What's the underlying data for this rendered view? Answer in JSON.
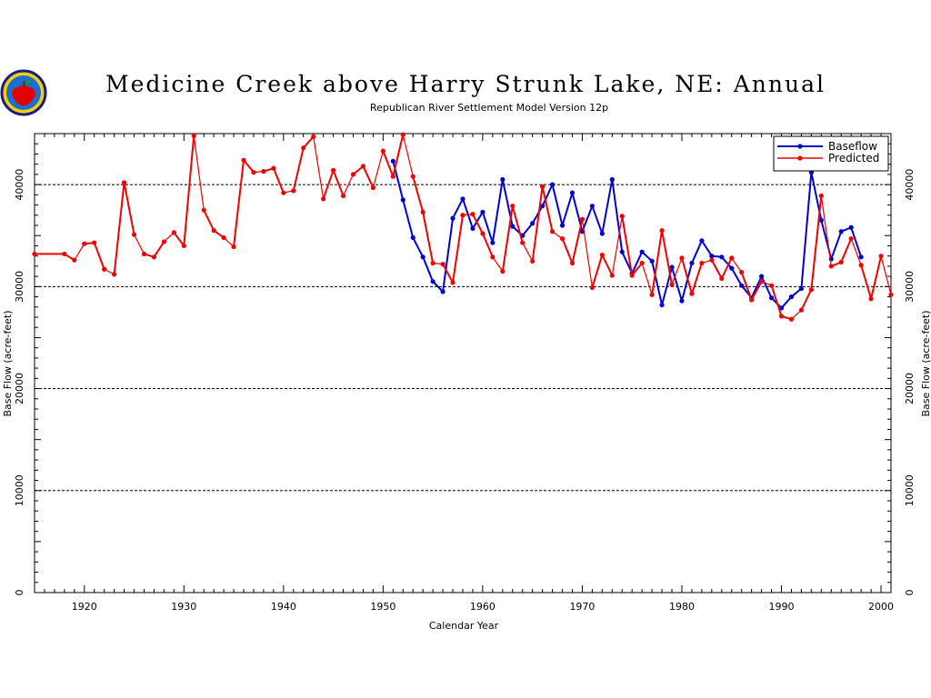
{
  "chart_data": {
    "type": "line",
    "title": "Medicine Creek above Harry Strunk Lake, NE: Annual",
    "subtitle": "Republican River Settlement Model Version 12p",
    "xlabel": "Calendar Year",
    "ylabel": "Base Flow (acre-feet)",
    "xlim": [
      1915,
      2001
    ],
    "ylim": [
      0,
      45000
    ],
    "x_ticks": [
      1920,
      1930,
      1940,
      1950,
      1960,
      1970,
      1980,
      1990,
      2000
    ],
    "y_ticks": [
      0,
      10000,
      20000,
      30000,
      40000
    ],
    "grid": "horizontal dashed",
    "legend_position": "top-right",
    "series": [
      {
        "name": "Baseflow",
        "color": "#0000cc",
        "points": [
          [
            1951,
            42300
          ],
          [
            1952,
            38500
          ],
          [
            1953,
            34800
          ],
          [
            1954,
            32900
          ],
          [
            1955,
            30500
          ],
          [
            1956,
            29500
          ],
          [
            1957,
            36700
          ],
          [
            1958,
            38600
          ],
          [
            1959,
            35700
          ],
          [
            1960,
            37300
          ],
          [
            1961,
            34300
          ],
          [
            1962,
            40500
          ],
          [
            1963,
            35900
          ],
          [
            1964,
            35000
          ],
          [
            1965,
            36200
          ],
          [
            1966,
            37900
          ],
          [
            1967,
            40000
          ],
          [
            1968,
            36000
          ],
          [
            1969,
            39200
          ],
          [
            1970,
            35400
          ],
          [
            1971,
            37900
          ],
          [
            1972,
            35200
          ],
          [
            1973,
            40500
          ],
          [
            1974,
            33400
          ],
          [
            1975,
            31300
          ],
          [
            1976,
            33400
          ],
          [
            1977,
            32500
          ],
          [
            1978,
            28200
          ],
          [
            1979,
            31900
          ],
          [
            1980,
            28600
          ],
          [
            1981,
            32300
          ],
          [
            1982,
            34500
          ],
          [
            1983,
            33000
          ],
          [
            1984,
            32900
          ],
          [
            1985,
            31800
          ],
          [
            1986,
            30100
          ],
          [
            1987,
            28900
          ],
          [
            1988,
            31000
          ],
          [
            1989,
            28900
          ],
          [
            1990,
            27900
          ],
          [
            1991,
            29000
          ],
          [
            1992,
            29800
          ],
          [
            1993,
            41200
          ],
          [
            1994,
            36500
          ],
          [
            1995,
            32700
          ],
          [
            1996,
            35400
          ],
          [
            1997,
            35800
          ],
          [
            1998,
            32900
          ]
        ]
      },
      {
        "name": "Predicted",
        "color": "#ee0000",
        "points": [
          [
            1915,
            33200
          ],
          [
            1918,
            33200
          ],
          [
            1919,
            32600
          ],
          [
            1920,
            34200
          ],
          [
            1921,
            34300
          ],
          [
            1922,
            31700
          ],
          [
            1923,
            31200
          ],
          [
            1924,
            40200
          ],
          [
            1925,
            35100
          ],
          [
            1926,
            33200
          ],
          [
            1927,
            32900
          ],
          [
            1928,
            34400
          ],
          [
            1929,
            35300
          ],
          [
            1930,
            34000
          ],
          [
            1931,
            44800
          ],
          [
            1932,
            37500
          ],
          [
            1933,
            35500
          ],
          [
            1934,
            34800
          ],
          [
            1935,
            33900
          ],
          [
            1936,
            42400
          ],
          [
            1937,
            41200
          ],
          [
            1938,
            41300
          ],
          [
            1939,
            41600
          ],
          [
            1940,
            39200
          ],
          [
            1941,
            39400
          ],
          [
            1942,
            43600
          ],
          [
            1943,
            44700
          ],
          [
            1944,
            38600
          ],
          [
            1945,
            41400
          ],
          [
            1946,
            38900
          ],
          [
            1947,
            41000
          ],
          [
            1948,
            41800
          ],
          [
            1949,
            39700
          ],
          [
            1950,
            43300
          ],
          [
            1951,
            40800
          ],
          [
            1952,
            44900
          ],
          [
            1953,
            40800
          ],
          [
            1954,
            37300
          ],
          [
            1955,
            32300
          ],
          [
            1956,
            32200
          ],
          [
            1957,
            30400
          ],
          [
            1958,
            37000
          ],
          [
            1959,
            37100
          ],
          [
            1960,
            35200
          ],
          [
            1961,
            32900
          ],
          [
            1962,
            31500
          ],
          [
            1963,
            37900
          ],
          [
            1964,
            34300
          ],
          [
            1965,
            32500
          ],
          [
            1966,
            39800
          ],
          [
            1967,
            35400
          ],
          [
            1968,
            34700
          ],
          [
            1969,
            32300
          ],
          [
            1970,
            36600
          ],
          [
            1971,
            29900
          ],
          [
            1972,
            33100
          ],
          [
            1973,
            31100
          ],
          [
            1974,
            36900
          ],
          [
            1975,
            31100
          ],
          [
            1976,
            32300
          ],
          [
            1977,
            29200
          ],
          [
            1978,
            35500
          ],
          [
            1979,
            30200
          ],
          [
            1980,
            32800
          ],
          [
            1981,
            29300
          ],
          [
            1982,
            32300
          ],
          [
            1983,
            32600
          ],
          [
            1984,
            30800
          ],
          [
            1985,
            32800
          ],
          [
            1986,
            31400
          ],
          [
            1987,
            28700
          ],
          [
            1988,
            30500
          ],
          [
            1989,
            30100
          ],
          [
            1990,
            27100
          ],
          [
            1991,
            26800
          ],
          [
            1992,
            27700
          ],
          [
            1993,
            29700
          ],
          [
            1994,
            38900
          ],
          [
            1995,
            32000
          ],
          [
            1996,
            32400
          ],
          [
            1997,
            34700
          ],
          [
            1998,
            32100
          ],
          [
            1999,
            28800
          ],
          [
            2000,
            33000
          ],
          [
            2001,
            29200
          ]
        ]
      }
    ]
  }
}
